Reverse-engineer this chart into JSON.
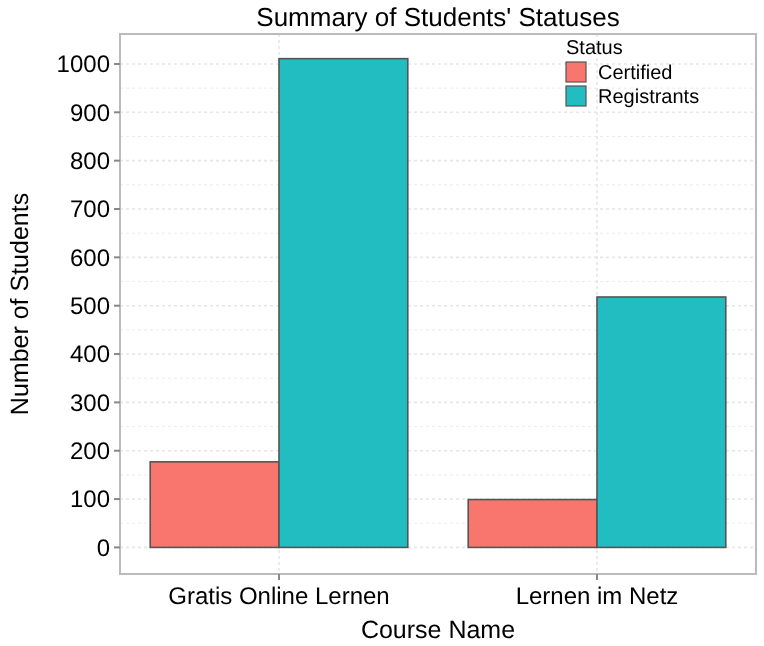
{
  "chart_data": {
    "type": "bar",
    "title": "Summary of Students' Statuses",
    "xlabel": "Course Name",
    "ylabel": "Number of Students",
    "legend_title": "Status",
    "categories": [
      "Gratis Online Lernen",
      "Lernen im Netz"
    ],
    "series": [
      {
        "name": "Certified",
        "color": "#f8766d",
        "values": [
          177,
          99
        ]
      },
      {
        "name": "Registrants",
        "color": "#22bdc1",
        "values": [
          1011,
          518
        ]
      }
    ],
    "ylim": [
      -55,
      1062
    ],
    "yticks": [
      0,
      100,
      200,
      300,
      400,
      500,
      600,
      700,
      800,
      900,
      1000
    ],
    "grid": true,
    "legend": "top right"
  }
}
